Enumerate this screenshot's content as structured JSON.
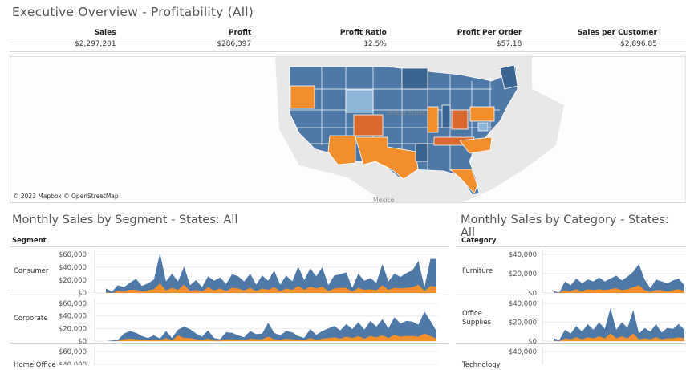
{
  "title": "Executive Overview - Profitability (All)",
  "kpis": [
    {
      "label": "Sales",
      "value": "$2,297,201"
    },
    {
      "label": "Profit",
      "value": "$286,397"
    },
    {
      "label": "Profit Ratio",
      "value": "12.5%"
    },
    {
      "label": "Profit Per Order",
      "value": "$57.18"
    },
    {
      "label": "Sales per Customer",
      "value": "$2,896.85"
    }
  ],
  "map": {
    "attribution": "© 2023 Mapbox © OpenStreetMap",
    "places": [
      "United States",
      "Mexico"
    ],
    "colors": {
      "blue": "#4e79a7",
      "dark_blue": "#3a6591",
      "light_blue": "#8cb5d8",
      "orange": "#f28e2b",
      "dark_orange": "#d9692f",
      "land": "#e3e3e3"
    }
  },
  "left": {
    "title": "Monthly Sales by Segment - States: All",
    "dimension": "Segment",
    "rows": [
      "Consumer",
      "Corporate",
      "Home Office"
    ]
  },
  "right": {
    "title": "Monthly Sales by Category - States: All",
    "dimension": "Category",
    "rows": [
      "Furniture",
      "Office Supplies",
      "Technology"
    ]
  },
  "chart_data": [
    {
      "type": "area",
      "title": "Monthly Sales by Segment - States: All",
      "facet": "Segment",
      "ylim": [
        0,
        60000
      ],
      "yticks": [
        "$60,000",
        "$40,000",
        "$20,000",
        "$0"
      ],
      "colors": {
        "sales": "#4e79a7",
        "profit": "#f28e2b"
      },
      "panels": [
        {
          "name": "Consumer",
          "sales": [
            7000,
            2000,
            12000,
            9000,
            16000,
            22000,
            11000,
            15000,
            21000,
            62000,
            18000,
            30000,
            18000,
            41000,
            12000,
            20000,
            9000,
            26000,
            19000,
            24000,
            14000,
            29000,
            26000,
            18000,
            30000,
            13000,
            27000,
            19000,
            35000,
            13000,
            27000,
            18000,
            41000,
            20000,
            38000,
            26000,
            40000,
            12000,
            27000,
            29000,
            32000,
            8000,
            30000,
            19000,
            23000,
            16000,
            45000,
            18000,
            30000,
            25000,
            31000,
            35000,
            50000,
            9000,
            53000,
            53000
          ],
          "profit": [
            1000,
            0,
            3000,
            2000,
            5000,
            5000,
            3000,
            4000,
            6000,
            15000,
            4000,
            8000,
            5000,
            13000,
            3000,
            5000,
            2000,
            9000,
            4000,
            7000,
            3000,
            8000,
            7000,
            4000,
            8000,
            3000,
            7000,
            5000,
            9000,
            3000,
            7000,
            5000,
            11000,
            5000,
            10000,
            7000,
            10000,
            3000,
            7000,
            8000,
            8000,
            2000,
            8000,
            5000,
            6000,
            4000,
            12000,
            5000,
            8000,
            7000,
            8000,
            9000,
            13000,
            3000,
            11000,
            10000
          ]
        },
        {
          "name": "Corporate",
          "sales": [
            0,
            1000,
            2000,
            12000,
            16000,
            13000,
            8000,
            5000,
            9000,
            4000,
            16000,
            5000,
            18000,
            23000,
            19000,
            12000,
            7000,
            17000,
            5000,
            3000,
            14000,
            13000,
            9000,
            6000,
            16000,
            11000,
            12000,
            29000,
            13000,
            9000,
            16000,
            14000,
            8000,
            5000,
            19000,
            10000,
            16000,
            20000,
            24000,
            17000,
            27000,
            19000,
            30000,
            18000,
            32000,
            23000,
            35000,
            20000,
            38000,
            28000,
            32000,
            31000,
            26000,
            47000,
            32000,
            16000
          ],
          "profit": [
            0,
            0,
            500,
            3000,
            4000,
            3000,
            2000,
            1000,
            2000,
            1000,
            5000,
            1000,
            9000,
            5000,
            5000,
            3000,
            2000,
            4000,
            1000,
            1000,
            3000,
            3000,
            2000,
            1000,
            4000,
            3000,
            3000,
            7000,
            3000,
            2000,
            4000,
            3000,
            2000,
            1000,
            5000,
            2000,
            4000,
            5000,
            6000,
            4000,
            7000,
            5000,
            8000,
            4000,
            8000,
            6000,
            9000,
            5000,
            10000,
            7000,
            8000,
            8000,
            7000,
            12000,
            8000,
            4000
          ]
        }
      ]
    },
    {
      "type": "area",
      "title": "Monthly Sales by Category - States: All",
      "facet": "Category",
      "ylim": [
        0,
        40000
      ],
      "yticks": [
        "$40,000",
        "$20,000",
        "$0"
      ],
      "colors": {
        "sales": "#4e79a7",
        "profit": "#f28e2b"
      },
      "panels": [
        {
          "name": "Furniture",
          "sales": [
            2000,
            500,
            12000,
            8000,
            15000,
            10000,
            14000,
            12000,
            16000,
            12000,
            15000,
            18000,
            13000,
            17000,
            22000,
            30000,
            14000,
            5000,
            14000,
            12000,
            10000,
            13000,
            15000,
            8000
          ],
          "profit": [
            500,
            0,
            3000,
            2000,
            4000,
            2000,
            4000,
            3000,
            4000,
            3000,
            4000,
            5000,
            3000,
            4000,
            6000,
            8000,
            3000,
            1000,
            3000,
            3000,
            2000,
            3000,
            4000,
            2000
          ]
        },
        {
          "name": "Office Supplies",
          "sales": [
            3000,
            1000,
            12000,
            8000,
            16000,
            10000,
            18000,
            12000,
            20000,
            13000,
            35000,
            12000,
            20000,
            14000,
            33000,
            8000,
            14000,
            10000,
            18000,
            9000,
            14000,
            13000,
            18000,
            12000
          ],
          "profit": [
            500,
            0,
            3000,
            2000,
            4000,
            2000,
            4000,
            3000,
            5000,
            3000,
            8000,
            3000,
            5000,
            3000,
            8000,
            2000,
            3000,
            2000,
            4000,
            2000,
            3000,
            3000,
            4000,
            3000
          ]
        }
      ]
    }
  ]
}
